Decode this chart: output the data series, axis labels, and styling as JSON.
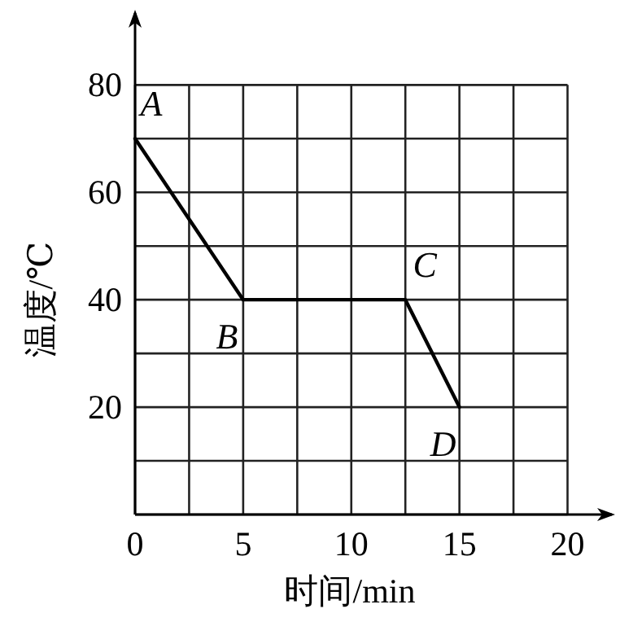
{
  "chart_data": {
    "type": "line",
    "xlabel": "时间/min",
    "ylabel": "温度/℃",
    "x": [
      0,
      5,
      12.5,
      15
    ],
    "series": [
      {
        "color": "#000000",
        "values": [
          70,
          40,
          40,
          20
        ]
      }
    ],
    "xlim": [
      0,
      22.2
    ],
    "ylim": [
      0,
      94
    ],
    "xticks": [
      0,
      {
        "value": 2.5,
        "label": null
      },
      5,
      {
        "value": 7.5,
        "label": null
      },
      10,
      {
        "value": 12.5,
        "label": null
      },
      15,
      {
        "value": 17.5,
        "label": null
      },
      20
    ],
    "yticks": [
      {
        "value": 0,
        "label": null
      },
      {
        "value": 10,
        "label": null
      },
      20,
      {
        "value": 30,
        "label": null
      },
      40,
      {
        "value": 50,
        "label": null
      },
      60,
      {
        "value": 70,
        "label": null
      },
      80
    ],
    "grid": true,
    "marker": "none",
    "line_style": "solid",
    "annotations": [
      {
        "text": "A",
        "x": 0,
        "y": 70
      },
      {
        "text": "B",
        "x": 5,
        "y": 40
      },
      {
        "text": "C",
        "x": 12.5,
        "y": 40
      },
      {
        "text": "D",
        "x": 15,
        "y": 20
      }
    ]
  }
}
